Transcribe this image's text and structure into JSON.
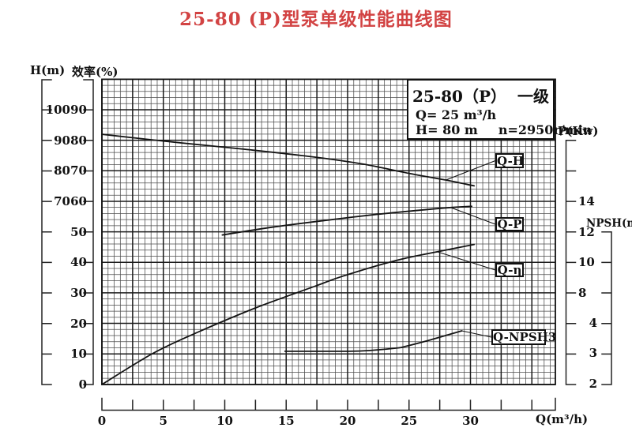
{
  "title": "25-80 (P)型泵单级性能曲线图",
  "colors": {
    "title_red": "#d24343",
    "ink": "#111111",
    "grid_minor": "#4d4d4d",
    "grid_major": "#1a1a1a"
  },
  "info_box": {
    "model": "25-80（P）",
    "stage": "一级",
    "q_line": "Q= 25 m³/h",
    "h_line": "H= 80 m",
    "n_line": "n=2950r/min"
  },
  "axes": {
    "h": {
      "label": "H(m)",
      "ticks": [
        "100",
        "90",
        "80",
        "70"
      ]
    },
    "eff": {
      "label": "效率(%)",
      "ticks": [
        "90",
        "80",
        "70",
        "60",
        "50",
        "40",
        "30",
        "20",
        "10",
        "0"
      ]
    },
    "p": {
      "label": "P(Kw)",
      "ticks": [
        "14",
        "12",
        "10",
        "8"
      ]
    },
    "npsh": {
      "label": "NPSH(m)",
      "ticks": [
        "4",
        "3",
        "2"
      ]
    },
    "q": {
      "label": "Q(m³/h)",
      "ticks": [
        "0",
        "5",
        "10",
        "15",
        "20",
        "25",
        "30"
      ]
    }
  },
  "curve_labels": {
    "qh": "Q-H",
    "qp": "Q-P",
    "qeta": "Q-η",
    "qnpsh": "Q-NPSH3"
  },
  "chart_data": {
    "type": "line",
    "title": "25-80 (P)型泵单级性能曲线图",
    "xlabel": "Q(m³/h)",
    "x_range": [
      0,
      37
    ],
    "grid": "on",
    "rated_point": {
      "Q": "25 m³/h",
      "H": "80 m",
      "n": "2950r/min",
      "stage": "一级"
    },
    "axis_ranges": {
      "H_m": [
        10,
        110
      ],
      "eff_pct": [
        0,
        100
      ],
      "P_kW_labels": [
        8,
        14
      ],
      "NPSH_m_labels": [
        2,
        4
      ]
    },
    "series": [
      {
        "name": "Q-H",
        "scale": "H",
        "unit": "m",
        "x": [
          0,
          5.9,
          11.6,
          17.4,
          21.3,
          25.1,
          28.0,
          30.3
        ],
        "y": [
          92,
          89.4,
          87.1,
          84.5,
          82.2,
          79.1,
          77.0,
          75.1
        ]
      },
      {
        "name": "Q-P",
        "scale": "P",
        "unit": "kW",
        "x": [
          9.8,
          13.6,
          18.1,
          21.9,
          25.8,
          28.4,
          30.1
        ],
        "y": [
          11.8,
          12.28,
          12.75,
          13.11,
          13.42,
          13.6,
          13.68
        ]
      },
      {
        "name": "Q-η",
        "scale": "eff",
        "unit": "%",
        "x": [
          0,
          4.1,
          7.5,
          12.5,
          17.4,
          19.6,
          23.9,
          27.3,
          30.3
        ],
        "y": [
          0,
          10.1,
          16.6,
          25.1,
          32.3,
          35.5,
          40.6,
          43.5,
          45.9
        ]
      },
      {
        "name": "Q-NPSH3",
        "scale": "npsh",
        "unit": "m",
        "x": [
          14.9,
          18.1,
          21.1,
          23.9,
          24.7,
          26.8,
          29.3
        ],
        "y": [
          3.09,
          3.09,
          3.1,
          3.19,
          3.25,
          3.47,
          3.76
        ]
      }
    ]
  }
}
